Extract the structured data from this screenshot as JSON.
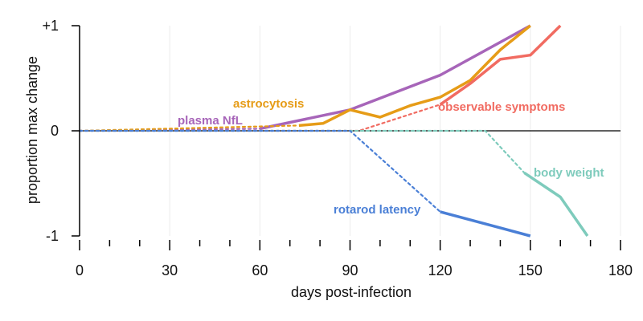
{
  "chart_data": {
    "type": "line",
    "xlabel": "days post-infection",
    "ylabel": "proportion max change",
    "xlim": [
      0,
      180
    ],
    "ylim": [
      -1,
      1
    ],
    "x_ticks": [
      0,
      30,
      60,
      90,
      120,
      150,
      180
    ],
    "x_minor_ticks": [
      10,
      20,
      40,
      50,
      70,
      80,
      100,
      110,
      130,
      140,
      160,
      170
    ],
    "y_ticks": [
      {
        "value": 1,
        "label": "+1"
      },
      {
        "value": 0,
        "label": "0"
      },
      {
        "value": -1,
        "label": "-1"
      }
    ],
    "grid": "vertical",
    "zero_line": true,
    "series": [
      {
        "name": "plasma NfL",
        "color": "#a765b9",
        "dotted": [
          [
            0,
            0
          ],
          [
            60,
            0.02
          ]
        ],
        "solid": [
          [
            60,
            0.02
          ],
          [
            90,
            0.2
          ],
          [
            120,
            0.53
          ],
          [
            150,
            1.0
          ]
        ]
      },
      {
        "name": "astrocytosis",
        "color": "#e69c17",
        "dotted": [
          [
            0,
            0
          ],
          [
            73,
            0.05
          ]
        ],
        "solid": [
          [
            73,
            0.05
          ],
          [
            81,
            0.07
          ],
          [
            90,
            0.2
          ],
          [
            100,
            0.13
          ],
          [
            110,
            0.24
          ],
          [
            120,
            0.32
          ],
          [
            130,
            0.48
          ],
          [
            140,
            0.77
          ],
          [
            150,
            1.0
          ]
        ]
      },
      {
        "name": "observable symptoms",
        "color": "#f16b61",
        "dotted": [
          [
            0,
            0
          ],
          [
            93,
            0
          ],
          [
            120,
            0.25
          ]
        ],
        "solid": [
          [
            120,
            0.25
          ],
          [
            130,
            0.45
          ],
          [
            140,
            0.68
          ],
          [
            150,
            0.72
          ],
          [
            160,
            1.0
          ]
        ]
      },
      {
        "name": "body weight",
        "color": "#7ecbbc",
        "dotted": [
          [
            0,
            0
          ],
          [
            135,
            0
          ],
          [
            148,
            -0.4
          ]
        ],
        "solid": [
          [
            148,
            -0.4
          ],
          [
            160,
            -0.63
          ],
          [
            169,
            -1.0
          ]
        ]
      },
      {
        "name": "rotarod latency",
        "color": "#4a7fd6",
        "dotted": [
          [
            0,
            0
          ],
          [
            90,
            0
          ],
          [
            120,
            -0.77
          ]
        ],
        "solid": [
          [
            120,
            -0.77
          ],
          [
            150,
            -1.0
          ]
        ]
      }
    ]
  }
}
